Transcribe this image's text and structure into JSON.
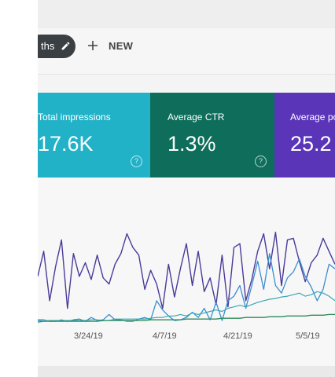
{
  "toolbar": {
    "chip_label": "ths",
    "new_label": "NEW"
  },
  "colors": {
    "impressions": "#22b2c8",
    "ctr": "#0e6e5b",
    "position": "#5a35b8",
    "line_purple": "#4a3a9a",
    "line_blue": "#3a8fd0",
    "line_teal": "#3aa7b0",
    "line_green": "#2e8a5a"
  },
  "cards": [
    {
      "title": "Total impressions",
      "value": "17.6K",
      "help": "?"
    },
    {
      "title": "Average CTR",
      "value": "1.3%",
      "help": "?"
    },
    {
      "title": "Average po",
      "value": "25.2",
      "help": "?"
    }
  ],
  "chart_data": {
    "type": "line",
    "x_ticks": [
      "3/24/19",
      "4/7/19",
      "4/21/19",
      "5/5/19"
    ],
    "series": [
      {
        "values": [
          62,
          95,
          30,
          75,
          110,
          20,
          92,
          62,
          80,
          58,
          90,
          60,
          52,
          78,
          92,
          118,
          100,
          90,
          45,
          70,
          52,
          20,
          78,
          35,
          72,
          105,
          50,
          95,
          42,
          60,
          25,
          90,
          22,
          100,
          105,
          30,
          58,
          95,
          118,
          72,
          120,
          50,
          110,
          112,
          82,
          55,
          80,
          90,
          112,
          95,
          78
        ]
      },
      {
        "values": [
          5,
          5,
          3,
          3,
          5,
          3,
          5,
          6,
          3,
          8,
          4,
          5,
          12,
          5,
          5,
          3,
          3,
          6,
          8,
          5,
          30,
          18,
          10,
          4,
          5,
          8,
          15,
          8,
          20,
          5,
          28,
          4,
          30,
          36,
          50,
          20,
          50,
          82,
          45,
          92,
          50,
          40,
          60,
          68,
          85,
          62,
          48,
          30,
          45,
          78,
          72
        ]
      },
      {
        "values": [
          4,
          3,
          4,
          4,
          4,
          4,
          4,
          4,
          4,
          5,
          5,
          4,
          4,
          6,
          6,
          6,
          6,
          6,
          6,
          7,
          8,
          8,
          10,
          10,
          12,
          10,
          14,
          12,
          14,
          16,
          18,
          16,
          20,
          22,
          24,
          22,
          25,
          28,
          30,
          32,
          33,
          35,
          36,
          38,
          40,
          36,
          38,
          42,
          40,
          36,
          30
        ]
      },
      {
        "values": [
          2,
          3,
          3,
          3,
          3,
          3,
          3,
          3,
          3,
          3,
          3,
          4,
          4,
          4,
          4,
          4,
          4,
          4,
          4,
          5,
          5,
          5,
          5,
          5,
          5,
          6,
          6,
          6,
          6,
          6,
          6,
          7,
          7,
          7,
          7,
          8,
          8,
          8,
          8,
          9,
          9,
          9,
          10,
          10,
          10,
          10,
          11,
          11,
          11,
          12,
          12
        ]
      }
    ],
    "ylim": [
      0,
      130
    ],
    "grid": false,
    "legend": "none"
  }
}
